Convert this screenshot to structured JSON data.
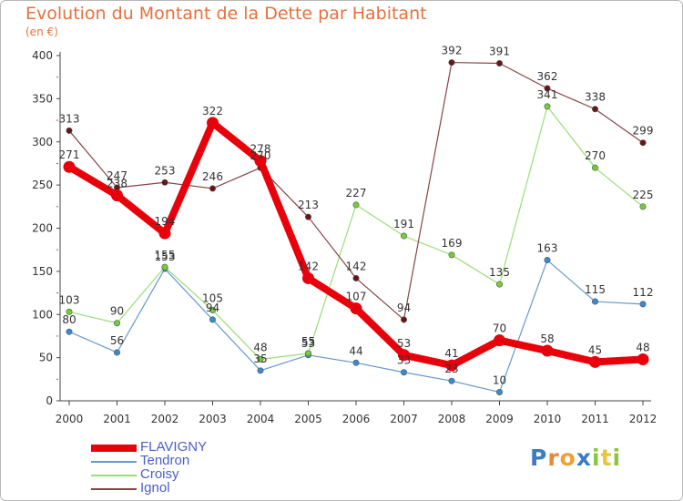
{
  "header": {
    "title": "Evolution du Montant de la Dette par Habitant",
    "subtitle": "(en €)"
  },
  "logo": {
    "letters": [
      "P",
      "r",
      "o",
      "x",
      "i",
      "t",
      "i"
    ],
    "colors": [
      "#3b7dc4",
      "#e8873c",
      "#f0a030",
      "#3b7dc4",
      "#8cc63f",
      "#e8c43c",
      "#8cc63f"
    ]
  },
  "chart_data": {
    "type": "line",
    "title": "Evolution du Montant de la Dette par Habitant",
    "ylabel": "(en €)",
    "xlabel": "",
    "x": [
      "2000",
      "2001",
      "2002",
      "2003",
      "2004",
      "2005",
      "2006",
      "2007",
      "2008",
      "2009",
      "2010",
      "2011",
      "2012"
    ],
    "ylim": [
      0,
      400
    ],
    "yticks": [
      0,
      50,
      100,
      150,
      200,
      250,
      300,
      350,
      400
    ],
    "grid": false,
    "legend": "bottom-left",
    "series": [
      {
        "name": "FLAVIGNY",
        "color": "#e8000a",
        "point_color": "#e8000a",
        "width": 8,
        "values": [
          271,
          238,
          194,
          322,
          278,
          142,
          107,
          53,
          41,
          70,
          58,
          45,
          48
        ]
      },
      {
        "name": "Tendron",
        "color": "#6699cc",
        "point_color": "#3a8ad0",
        "width": 1.2,
        "values": [
          80,
          56,
          153,
          94,
          35,
          53,
          44,
          33,
          23,
          10,
          163,
          115,
          112
        ]
      },
      {
        "name": "Croisy",
        "color": "#99dd77",
        "point_color": "#77cc33",
        "width": 1.2,
        "values": [
          103,
          90,
          155,
          105,
          48,
          55,
          227,
          191,
          169,
          135,
          341,
          270,
          225
        ]
      },
      {
        "name": "Ignol",
        "color": "#884444",
        "point_color": "#6a1414",
        "width": 1.2,
        "values": [
          313,
          247,
          253,
          246,
          270,
          213,
          142,
          94,
          392,
          391,
          362,
          338,
          299
        ]
      }
    ]
  }
}
